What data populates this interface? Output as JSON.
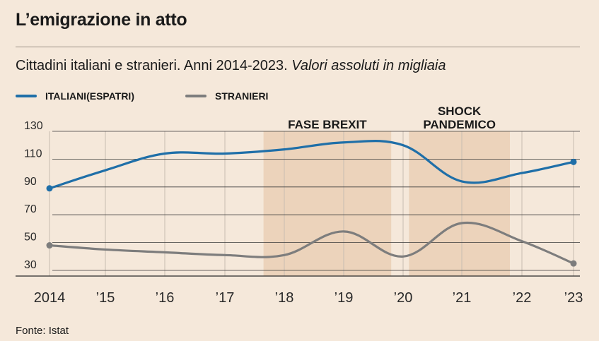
{
  "header": {
    "title": "L’emigrazione in atto",
    "subtitle_main": "Cittadini italiani e stranieri. Anni 2014-2023.",
    "subtitle_italic": "Valori assoluti in migliaia"
  },
  "footer": {
    "source": "Fonte: Istat"
  },
  "colors": {
    "background": "#f5e8da",
    "shade": "#ecd3bb",
    "grid": "#c8bcb0",
    "italiani": "#1f6fa8",
    "stranieri": "#7d7d7d"
  },
  "chart_data": {
    "type": "line",
    "x": [
      2014,
      2015,
      2016,
      2017,
      2018,
      2019,
      2020,
      2021,
      2022,
      2023
    ],
    "x_tick_labels": [
      "2014",
      "’15",
      "’16",
      "’17",
      "’18",
      "’19",
      "’20",
      "’21",
      "’22",
      "’23"
    ],
    "y_ticks": [
      30,
      50,
      70,
      90,
      110,
      130
    ],
    "ylim": [
      28,
      133
    ],
    "grid": true,
    "legend_position": "top-left",
    "series": [
      {
        "name": "ITALIANI(ESPATRI)",
        "color": "#1f6fa8",
        "values": [
          89,
          102,
          114,
          114,
          117,
          122,
          120,
          94,
          100,
          108
        ]
      },
      {
        "name": "STRANIERI",
        "color": "#7d7d7d",
        "values": [
          48,
          45,
          43,
          41,
          41,
          58,
          40,
          64,
          51,
          35
        ]
      }
    ],
    "annotations": [
      {
        "label": "FASE BREXIT",
        "from": 2017.65,
        "to": 2019.8
      },
      {
        "label_line1": "SHOCK",
        "label_line2": "PANDEMICO",
        "from": 2020.1,
        "to": 2021.8
      }
    ]
  }
}
